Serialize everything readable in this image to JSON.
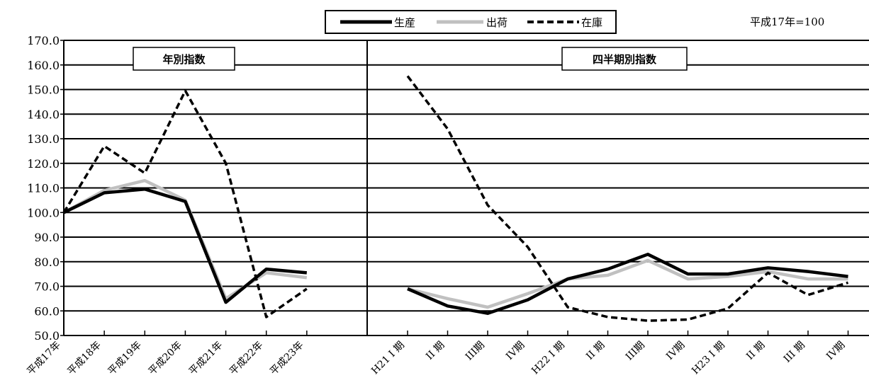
{
  "chart_data": {
    "type": "line",
    "base_note": "平成17年=100",
    "legend": [
      "生産",
      "出荷",
      "在庫"
    ],
    "ylim": [
      50,
      170
    ],
    "yticks": [
      "50.0",
      "60.0",
      "70.0",
      "80.0",
      "90.0",
      "100.0",
      "110.0",
      "120.0",
      "130.0",
      "140.0",
      "150.0",
      "160.0",
      "170.0"
    ],
    "colors": {
      "生産": "#000000",
      "出荷": "#c0c0c0",
      "在庫": "#000000"
    },
    "grid": true,
    "panels": [
      {
        "title": "年別指数",
        "categories": [
          "平成17年",
          "平成18年",
          "平成19年",
          "平成20年",
          "平成21年",
          "平成22年",
          "平成23年"
        ],
        "series": [
          {
            "name": "生産",
            "values": [
              100.0,
              108.0,
              109.5,
              104.5,
              63.5,
              77.0,
              75.5
            ]
          },
          {
            "name": "出荷",
            "values": [
              100.0,
              109.0,
              113.0,
              105.0,
              65.0,
              75.5,
              73.5
            ]
          },
          {
            "name": "在庫",
            "values": [
              100.0,
              127.0,
              116.0,
              149.5,
              120.0,
              57.5,
              69.0
            ]
          }
        ]
      },
      {
        "title": "四半期別指数",
        "categories": [
          "H21 I 期",
          "II 期",
          "III期",
          "IV期",
          "H22 I 期",
          "II 期",
          "III期",
          "IV期",
          "H23 I 期",
          "II 期",
          "III 期",
          "IV期"
        ],
        "series": [
          {
            "name": "生産",
            "values": [
              69.0,
              62.0,
              59.0,
              64.5,
              73.0,
              77.0,
              83.0,
              75.0,
              75.0,
              77.5,
              76.0,
              74.0
            ]
          },
          {
            "name": "出荷",
            "values": [
              69.0,
              65.0,
              61.5,
              67.0,
              73.0,
              74.5,
              80.5,
              73.0,
              74.0,
              76.0,
              73.0,
              73.0
            ]
          },
          {
            "name": "在庫",
            "values": [
              155.5,
              134.0,
              103.0,
              86.0,
              61.5,
              57.5,
              56.0,
              56.5,
              61.0,
              75.5,
              66.5,
              71.5
            ]
          }
        ]
      }
    ]
  }
}
